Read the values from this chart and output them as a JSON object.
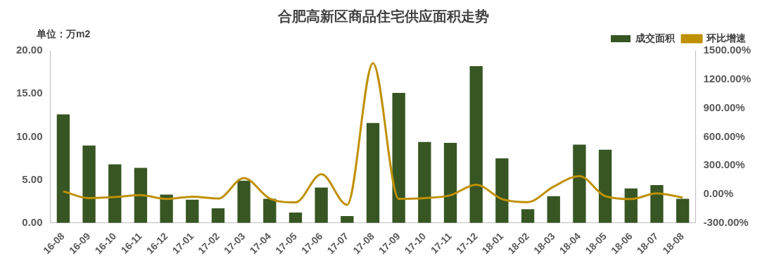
{
  "chart_data": {
    "type": "bar",
    "title": "合肥高新区商品住宅供应面积走势",
    "ylabel": "单位：万m2",
    "categories": [
      "16-08",
      "16-09",
      "16-10",
      "16-11",
      "16-12",
      "17-01",
      "17-02",
      "17-03",
      "17-04",
      "17-05",
      "17-06",
      "17-07",
      "17-08",
      "17-09",
      "17-10",
      "17-11",
      "17-12",
      "18-01",
      "18-02",
      "18-03",
      "18-04",
      "18-05",
      "18-06",
      "18-07",
      "18-08"
    ],
    "series": [
      {
        "name": "成交面积",
        "color": "#375623",
        "values": [
          12.6,
          9.0,
          6.8,
          6.4,
          3.3,
          2.7,
          1.7,
          4.9,
          2.8,
          1.2,
          4.1,
          0.8,
          11.6,
          15.1,
          9.4,
          9.3,
          18.2,
          7.5,
          1.6,
          3.1,
          9.1,
          8.5,
          4.0,
          4.4,
          2.8
        ]
      },
      {
        "name": "环比增速",
        "type": "line",
        "axis": "y2",
        "color": "#bf9000",
        "values": [
          30,
          -40,
          -30,
          -10,
          -50,
          -25,
          -45,
          170,
          -45,
          -85,
          210,
          -110,
          1370,
          -48,
          -40,
          -10,
          100,
          -50,
          -82,
          80,
          190,
          -20,
          -50,
          10,
          -35
        ]
      }
    ],
    "ylim": [
      0,
      20
    ],
    "yticks": [
      {
        "value": 0,
        "label": "0.00"
      },
      {
        "value": 5,
        "label": "5.00"
      },
      {
        "value": 10,
        "label": "10.00"
      },
      {
        "value": 15,
        "label": "15.00"
      },
      {
        "value": 20,
        "label": "20.00"
      }
    ],
    "y2lim": [
      -300,
      1500
    ],
    "y2ticks": [
      {
        "value": -300,
        "label": "-300.00%"
      },
      {
        "value": 0,
        "label": "0.00%"
      },
      {
        "value": 300,
        "label": "300.00%"
      },
      {
        "value": 600,
        "label": "600.00%"
      },
      {
        "value": 900,
        "label": "900.00%"
      },
      {
        "value": 1200,
        "label": "1200.00%"
      },
      {
        "value": 1500,
        "label": "1500.00%"
      }
    ],
    "grid": false,
    "legend": "top right",
    "marker": "none"
  }
}
